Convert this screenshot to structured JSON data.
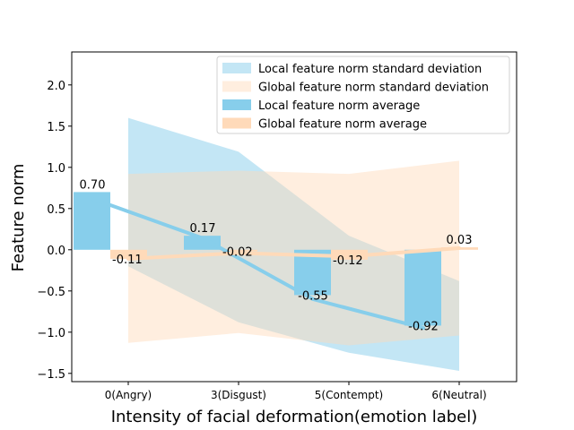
{
  "chart_data": {
    "type": "bar",
    "title": "",
    "xlabel": "Intensity of facial deformation(emotion label)",
    "ylabel": "Feature norm",
    "categories": [
      "0(Angry)",
      "3(Disgust)",
      "5(Contempt)",
      "6(Neutral)"
    ],
    "ylim": [
      -1.6,
      2.4
    ],
    "yticks": [
      -1.5,
      -1.0,
      -0.5,
      0.0,
      0.5,
      1.0,
      1.5,
      2.0
    ],
    "ytick_labels": [
      "−1.5",
      "−1.0",
      "−0.5",
      "0.0",
      "0.5",
      "1.0",
      "1.5",
      "2.0"
    ],
    "grid": false,
    "legend_position": "top-right",
    "series": [
      {
        "name": "Local feature norm average",
        "kind": "bar",
        "color": "#87ceeb",
        "values": [
          0.7,
          0.17,
          -0.55,
          -0.92
        ],
        "labels": [
          "0.70",
          "0.17",
          "-0.55",
          "-0.92"
        ]
      },
      {
        "name": "Global feature norm average",
        "kind": "bar",
        "color": "#ffdab9",
        "values": [
          -0.11,
          -0.02,
          -0.12,
          0.03
        ],
        "labels": [
          "-0.11",
          "-0.02",
          "-0.12",
          "0.03"
        ]
      }
    ],
    "trend_lines": [
      {
        "name": "Local trend",
        "color": "#87ceeb",
        "values": [
          0.62,
          0.14,
          -0.6,
          -0.95
        ]
      },
      {
        "name": "Global trend",
        "color": "#ffdab9",
        "values": [
          -0.11,
          -0.04,
          -0.08,
          0.02
        ]
      }
    ],
    "bands": [
      {
        "name": "Local feature norm standard deviation",
        "color": "#87ceeb",
        "upper": [
          1.6,
          1.19,
          0.17,
          -0.38
        ],
        "lower": [
          -0.2,
          -0.88,
          -1.25,
          -1.47
        ]
      },
      {
        "name": "Global feature norm standard deviation",
        "color": "#ffdab9",
        "upper": [
          0.92,
          0.96,
          0.92,
          1.08
        ],
        "lower": [
          -1.13,
          -1.01,
          -1.16,
          -1.04
        ]
      }
    ],
    "legend": [
      "Local feature norm standard deviation",
      "Global feature norm standard deviation",
      "Local feature norm average",
      "Global feature norm average"
    ]
  }
}
